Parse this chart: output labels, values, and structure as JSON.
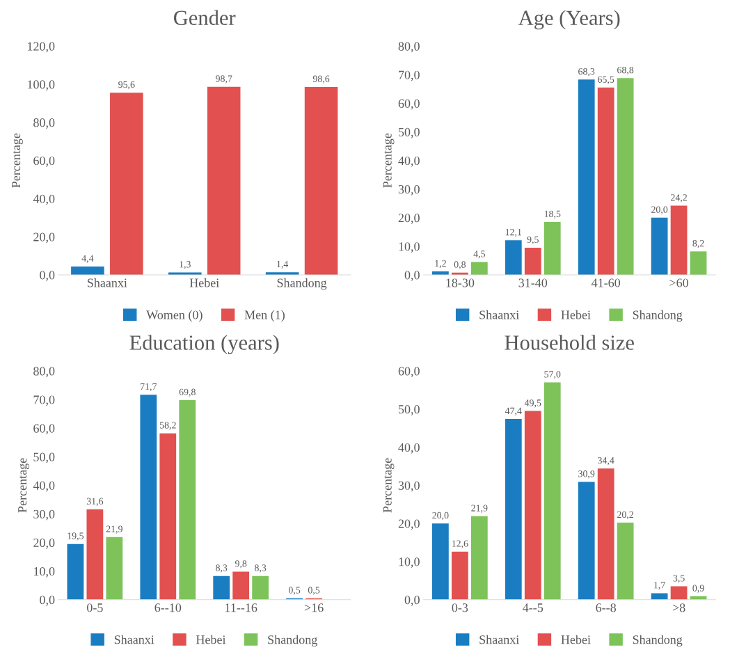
{
  "chart_data": [
    {
      "type": "bar",
      "title": "Gender",
      "ylabel": "Percentage",
      "categories": [
        "Shaanxi",
        "Hebei",
        "Shandong"
      ],
      "series": [
        {
          "name": "Women (0)",
          "color": "#1a7dc2",
          "values": [
            4.4,
            1.3,
            1.4
          ],
          "value_labels": [
            "4,4",
            "1,3",
            "1,4"
          ]
        },
        {
          "name": "Men (1)",
          "color": "#e35050",
          "values": [
            95.6,
            98.7,
            98.6
          ],
          "value_labels": [
            "95,6",
            "98,7",
            "98,6"
          ]
        }
      ],
      "ylim": [
        0,
        120
      ],
      "yticks": [
        {
          "value": 0,
          "label": "0,0"
        },
        {
          "value": 20,
          "label": "20,0"
        },
        {
          "value": 40,
          "label": "40,0"
        },
        {
          "value": 60,
          "label": "60,0"
        },
        {
          "value": 80,
          "label": "80,0"
        },
        {
          "value": 100,
          "label": "100,0"
        },
        {
          "value": 120,
          "label": "120,0"
        }
      ],
      "grid": false,
      "legend": "bottom"
    },
    {
      "type": "bar",
      "title": "Age (Years)",
      "ylabel": "Percentage",
      "categories": [
        "18-30",
        "31-40",
        "41-60",
        ">60"
      ],
      "series": [
        {
          "name": "Shaanxi",
          "color": "#1a7dc2",
          "values": [
            1.2,
            12.1,
            68.3,
            20.0
          ],
          "value_labels": [
            "1,2",
            "12,1",
            "68,3",
            "20,0"
          ]
        },
        {
          "name": "Hebei",
          "color": "#e35050",
          "values": [
            0.8,
            9.5,
            65.5,
            24.2
          ],
          "value_labels": [
            "0,8",
            "9,5",
            "65,5",
            "24,2"
          ]
        },
        {
          "name": "Shandong",
          "color": "#7dc35a",
          "values": [
            4.5,
            18.5,
            68.8,
            8.2
          ],
          "value_labels": [
            "4,5",
            "18,5",
            "68,8",
            "8,2"
          ]
        }
      ],
      "ylim": [
        0,
        80
      ],
      "yticks": [
        {
          "value": 0,
          "label": "0,0"
        },
        {
          "value": 10,
          "label": "10,0"
        },
        {
          "value": 20,
          "label": "20,0"
        },
        {
          "value": 30,
          "label": "30,0"
        },
        {
          "value": 40,
          "label": "40,0"
        },
        {
          "value": 50,
          "label": "50,0"
        },
        {
          "value": 60,
          "label": "60,0"
        },
        {
          "value": 70,
          "label": "70,0"
        },
        {
          "value": 80,
          "label": "80,0"
        }
      ],
      "grid": false,
      "legend": "bottom"
    },
    {
      "type": "bar",
      "title": "Education (years)",
      "ylabel": "Percentage",
      "categories": [
        "0-5",
        "6--10",
        "11--16",
        ">16"
      ],
      "series": [
        {
          "name": "Shaanxi",
          "color": "#1a7dc2",
          "values": [
            19.5,
            71.7,
            8.3,
            0.5
          ],
          "value_labels": [
            "19,5",
            "71,7",
            "8,3",
            "0,5"
          ]
        },
        {
          "name": "Hebei",
          "color": "#e35050",
          "values": [
            31.6,
            58.2,
            9.8,
            0.5
          ],
          "value_labels": [
            "31,6",
            "58,2",
            "9,8",
            "0,5"
          ]
        },
        {
          "name": "Shandong",
          "color": "#7dc35a",
          "values": [
            21.9,
            69.8,
            8.3,
            null
          ],
          "value_labels": [
            "21,9",
            "69,8",
            "8,3",
            null
          ]
        }
      ],
      "ylim": [
        0,
        80
      ],
      "yticks": [
        {
          "value": 0,
          "label": "0,0"
        },
        {
          "value": 10,
          "label": "10,0"
        },
        {
          "value": 20,
          "label": "20,0"
        },
        {
          "value": 30,
          "label": "30,0"
        },
        {
          "value": 40,
          "label": "40,0"
        },
        {
          "value": 50,
          "label": "50,0"
        },
        {
          "value": 60,
          "label": "60,0"
        },
        {
          "value": 70,
          "label": "70,0"
        },
        {
          "value": 80,
          "label": "80,0"
        }
      ],
      "grid": false,
      "legend": "bottom"
    },
    {
      "type": "bar",
      "title": "Household size",
      "ylabel": "Percentage",
      "categories": [
        "0-3",
        "4--5",
        "6--8",
        ">8"
      ],
      "series": [
        {
          "name": "Shaanxi",
          "color": "#1a7dc2",
          "values": [
            20.0,
            47.4,
            30.9,
            1.7
          ],
          "value_labels": [
            "20,0",
            "47,4",
            "30,9",
            "1,7"
          ]
        },
        {
          "name": "Hebei",
          "color": "#e35050",
          "values": [
            12.6,
            49.5,
            34.4,
            3.5
          ],
          "value_labels": [
            "12,6",
            "49,5",
            "34,4",
            "3,5"
          ]
        },
        {
          "name": "Shandong",
          "color": "#7dc35a",
          "values": [
            21.9,
            57.0,
            20.2,
            0.9
          ],
          "value_labels": [
            "21,9",
            "57,0",
            "20,2",
            "0,9"
          ]
        }
      ],
      "ylim": [
        0,
        60
      ],
      "yticks": [
        {
          "value": 0,
          "label": "0,0"
        },
        {
          "value": 10,
          "label": "10,0"
        },
        {
          "value": 20,
          "label": "20,0"
        },
        {
          "value": 30,
          "label": "30,0"
        },
        {
          "value": 40,
          "label": "40,0"
        },
        {
          "value": 50,
          "label": "50,0"
        },
        {
          "value": 60,
          "label": "60,0"
        }
      ],
      "grid": false,
      "legend": "bottom"
    }
  ]
}
